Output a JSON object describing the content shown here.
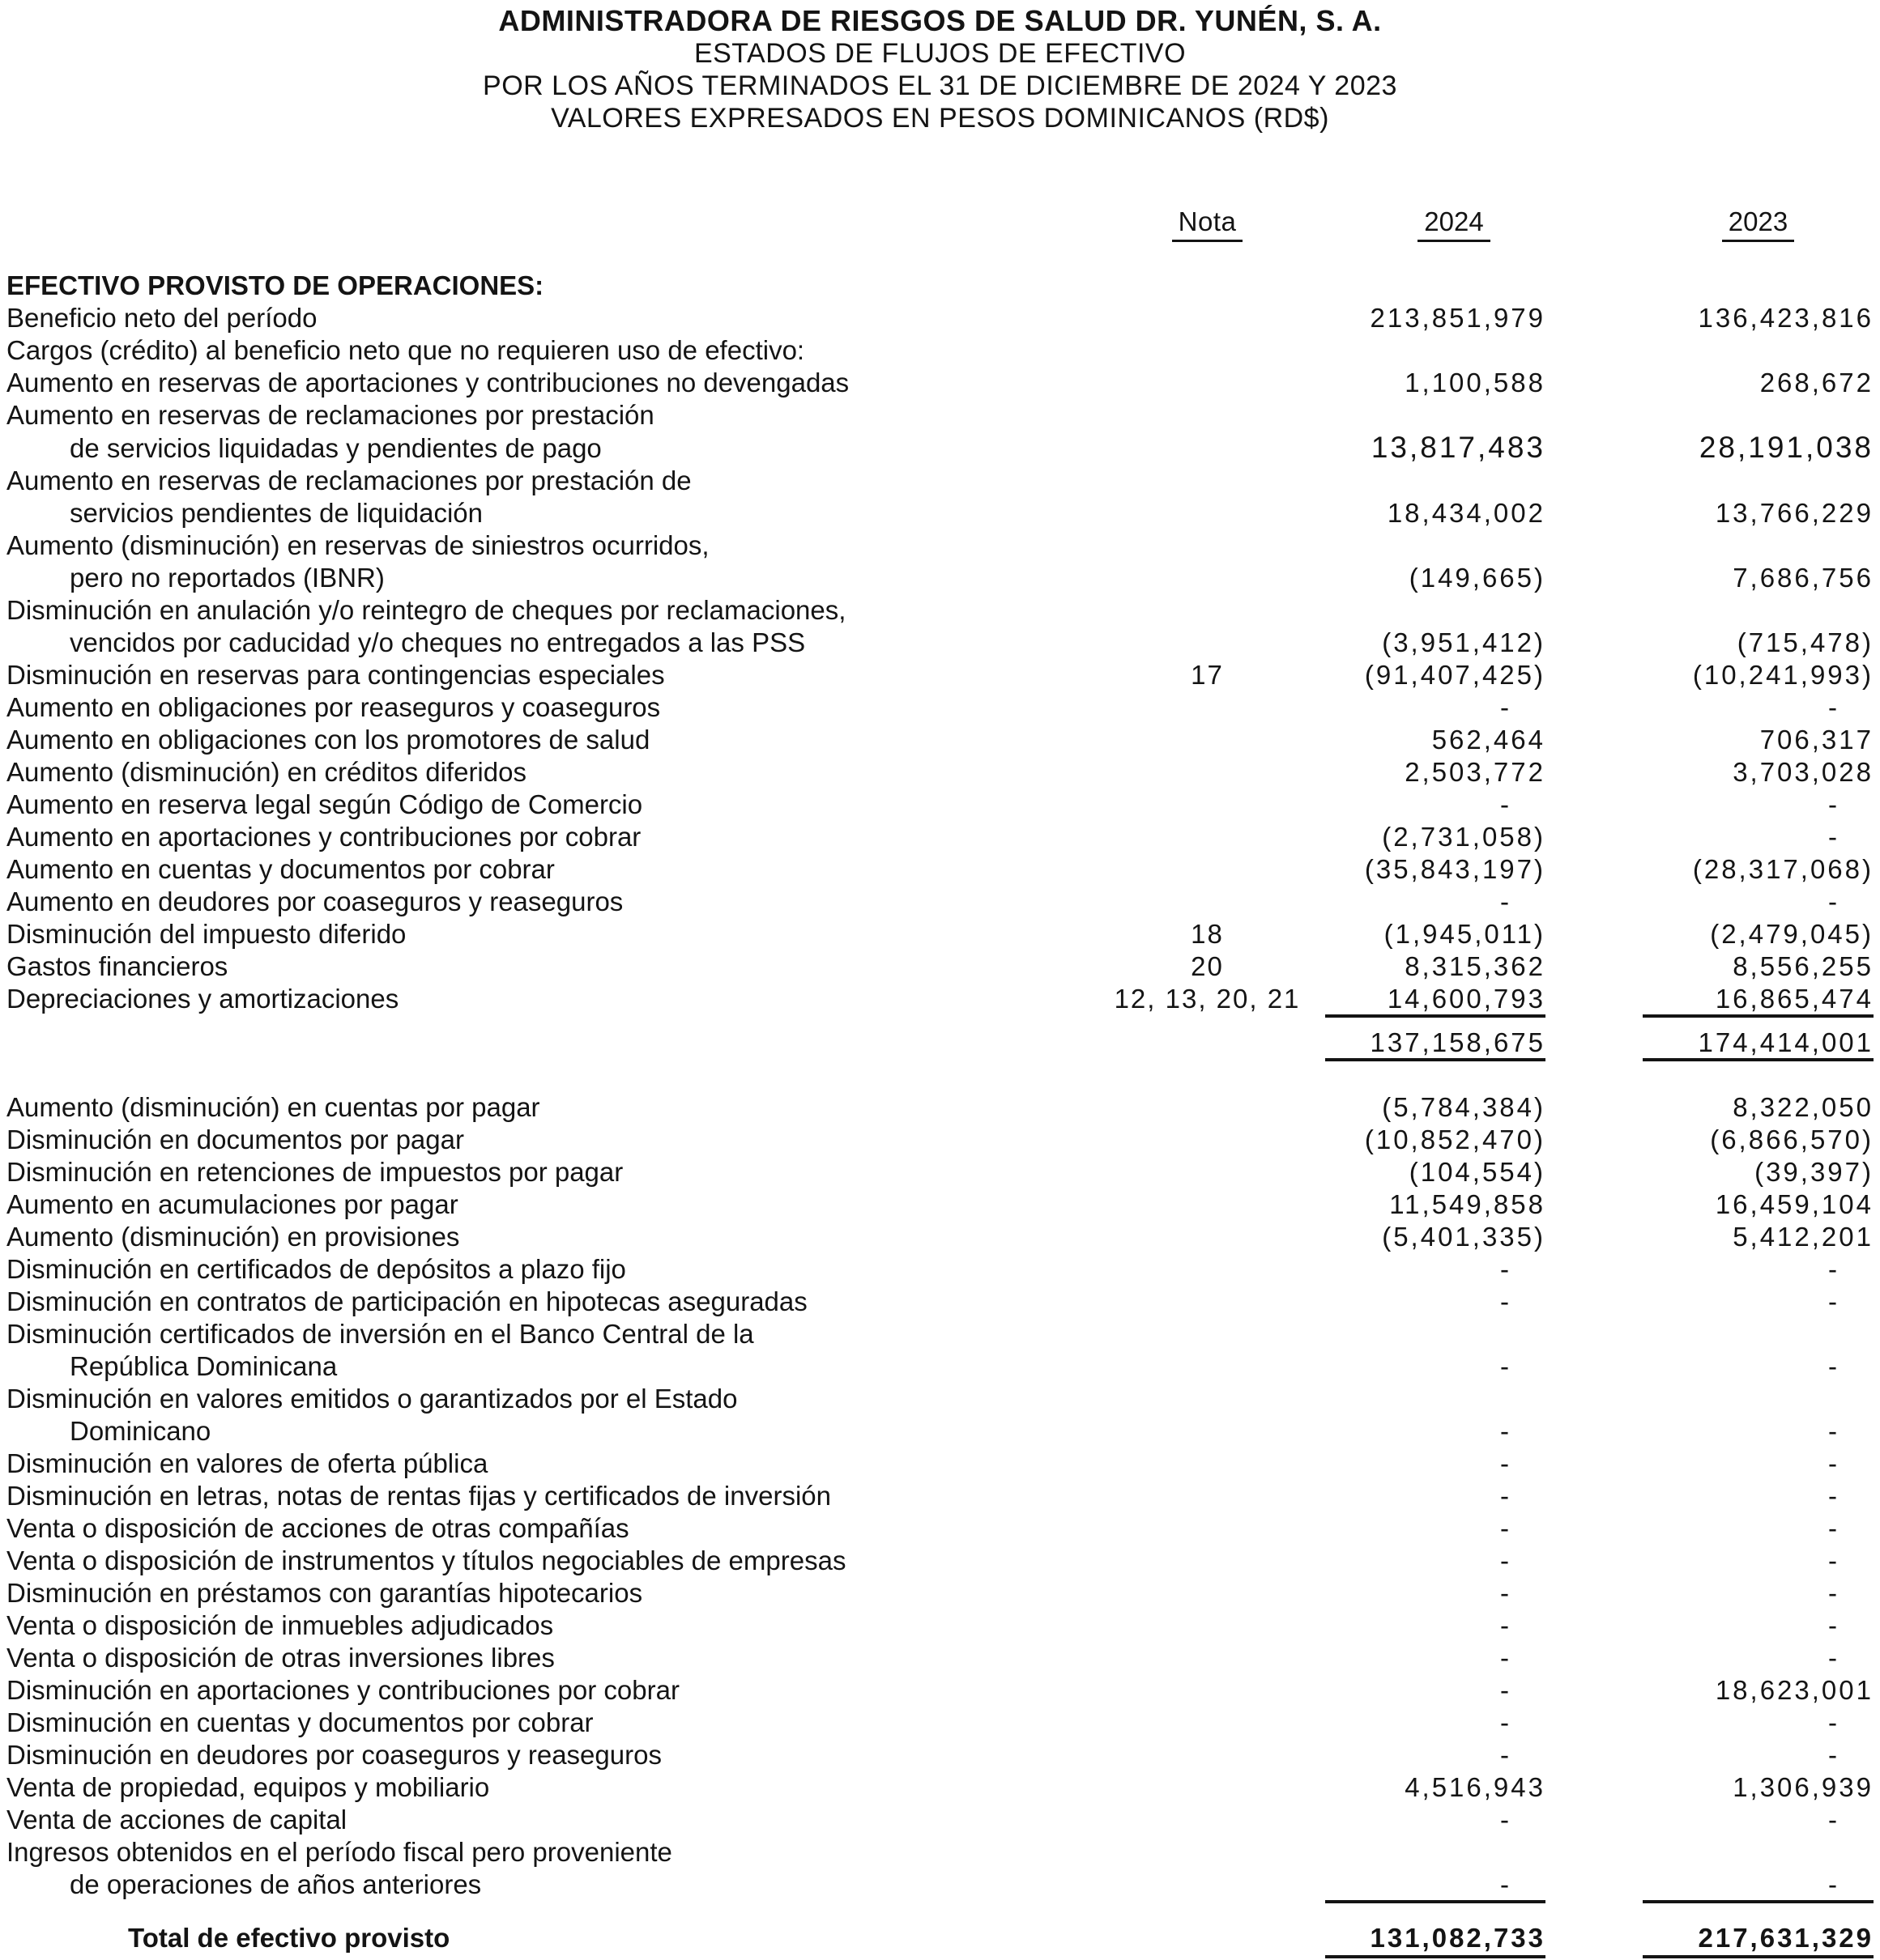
{
  "header": {
    "title": "ADMINISTRADORA DE RIESGOS DE SALUD DR. YUNÉN, S. A.",
    "subtitle1": "ESTADOS DE FLUJOS DE EFECTIVO",
    "subtitle2": "POR LOS AÑOS TERMINADOS EL 31 DE DICIEMBRE DE 2024 Y 2023",
    "subtitle3": "VALORES EXPRESADOS EN PESOS DOMINICANOS (RD$)"
  },
  "columns": {
    "nota": "Nota",
    "y2024": "2024",
    "y2023": "2023"
  },
  "table": {
    "rows": [
      {
        "label": "EFECTIVO PROVISTO DE OPERACIONES:",
        "nota": "",
        "v2024": "",
        "v2023": "",
        "indent": 0,
        "flags": "bold-label section-start",
        "name": "section-title-row"
      },
      {
        "label": "Beneficio neto del período",
        "nota": "",
        "v2024": "213,851,979",
        "v2023": "136,423,816",
        "indent": 0,
        "flags": ""
      },
      {
        "label": "Cargos (crédito) al beneficio neto que no requieren uso de efectivo:",
        "nota": "",
        "v2024": "",
        "v2023": "",
        "indent": 0,
        "flags": ""
      },
      {
        "label": "Aumento en reservas de aportaciones y contribuciones no devengadas",
        "nota": "",
        "v2024": "1,100,588",
        "v2023": "268,672",
        "indent": 0,
        "flags": ""
      },
      {
        "label": "Aumento en reservas de reclamaciones por prestación",
        "nota": "",
        "v2024": "",
        "v2023": "",
        "indent": 0,
        "flags": ""
      },
      {
        "label": "de servicios liquidadas y pendientes de pago",
        "nota": "",
        "v2024": "13,817,483",
        "v2023": "28,191,038",
        "indent": 1,
        "flags": "big-values"
      },
      {
        "label": "Aumento en reservas de reclamaciones por prestación de",
        "nota": "",
        "v2024": "",
        "v2023": "",
        "indent": 0,
        "flags": ""
      },
      {
        "label": "servicios pendientes de liquidación",
        "nota": "",
        "v2024": "18,434,002",
        "v2023": "13,766,229",
        "indent": 1,
        "flags": ""
      },
      {
        "label": "Aumento (disminución) en reservas de siniestros ocurridos,",
        "nota": "",
        "v2024": "",
        "v2023": "",
        "indent": 0,
        "flags": ""
      },
      {
        "label": "pero no reportados (IBNR)",
        "nota": "",
        "v2024": "(149,665)",
        "v2023": "7,686,756",
        "indent": 1,
        "flags": ""
      },
      {
        "label": "Disminución en anulación y/o reintegro de cheques por reclamaciones,",
        "nota": "",
        "v2024": "",
        "v2023": "",
        "indent": 0,
        "flags": ""
      },
      {
        "label": "vencidos por caducidad y/o cheques no entregados a las PSS",
        "nota": "",
        "v2024": "(3,951,412)",
        "v2023": "(715,478)",
        "indent": 1,
        "flags": ""
      },
      {
        "label": "Disminución en reservas para contingencias especiales",
        "nota": "17",
        "v2024": "(91,407,425)",
        "v2023": "(10,241,993)",
        "indent": 0,
        "flags": ""
      },
      {
        "label": "Aumento en obligaciones por reaseguros y coaseguros",
        "nota": "",
        "v2024": "-",
        "v2023": "-",
        "indent": 0,
        "flags": ""
      },
      {
        "label": "Aumento en obligaciones con los promotores de salud",
        "nota": "",
        "v2024": "562,464",
        "v2023": "706,317",
        "indent": 0,
        "flags": ""
      },
      {
        "label": "Aumento (disminución) en créditos diferidos",
        "nota": "",
        "v2024": "2,503,772",
        "v2023": "3,703,028",
        "indent": 0,
        "flags": ""
      },
      {
        "label": "Aumento en reserva legal según Código de Comercio",
        "nota": "",
        "v2024": "-",
        "v2023": "-",
        "indent": 0,
        "flags": ""
      },
      {
        "label": "Aumento en aportaciones y contribuciones por cobrar",
        "nota": "",
        "v2024": "(2,731,058)",
        "v2023": "-",
        "indent": 0,
        "flags": ""
      },
      {
        "label": "Aumento en cuentas y documentos por cobrar",
        "nota": "",
        "v2024": "(35,843,197)",
        "v2023": "(28,317,068)",
        "indent": 0,
        "flags": ""
      },
      {
        "label": "Aumento en deudores por coaseguros y reaseguros",
        "nota": "",
        "v2024": "-",
        "v2023": "-",
        "indent": 0,
        "flags": ""
      },
      {
        "label": "Disminución del impuesto diferido",
        "nota": "18",
        "v2024": "(1,945,011)",
        "v2023": "(2,479,045)",
        "indent": 0,
        "flags": ""
      },
      {
        "label": "Gastos financieros",
        "nota": "20",
        "v2024": "8,315,362",
        "v2023": "8,556,255",
        "indent": 0,
        "flags": ""
      },
      {
        "label": "Depreciaciones y amortizaciones",
        "nota": "12, 13, 20, 21",
        "v2024": "14,600,793",
        "v2023": "16,865,474",
        "indent": 0,
        "flags": "rule-below"
      },
      {
        "label": "",
        "nota": "",
        "v2024": "137,158,675",
        "v2023": "174,414,001",
        "indent": 0,
        "flags": "rule-below gap-sm",
        "name": "subtotal-row"
      },
      {
        "label": "Aumento (disminución) en cuentas por pagar",
        "nota": "",
        "v2024": "(5,784,384)",
        "v2023": "8,322,050",
        "indent": 0,
        "flags": "gap-lg"
      },
      {
        "label": "Disminución en documentos por pagar",
        "nota": "",
        "v2024": "(10,852,470)",
        "v2023": "(6,866,570)",
        "indent": 0,
        "flags": ""
      },
      {
        "label": "Disminución en retenciones de impuestos por pagar",
        "nota": "",
        "v2024": "(104,554)",
        "v2023": "(39,397)",
        "indent": 0,
        "flags": ""
      },
      {
        "label": "Aumento en acumulaciones por pagar",
        "nota": "",
        "v2024": "11,549,858",
        "v2023": "16,459,104",
        "indent": 0,
        "flags": ""
      },
      {
        "label": "Aumento (disminución) en provisiones",
        "nota": "",
        "v2024": "(5,401,335)",
        "v2023": "5,412,201",
        "indent": 0,
        "flags": ""
      },
      {
        "label": "Disminución en certificados de depósitos a plazo fijo",
        "nota": "",
        "v2024": "-",
        "v2023": "-",
        "indent": 0,
        "flags": ""
      },
      {
        "label": "Disminución en contratos de participación en hipotecas aseguradas",
        "nota": "",
        "v2024": "-",
        "v2023": "-",
        "indent": 0,
        "flags": ""
      },
      {
        "label": "Disminución certificados de inversión en el Banco Central de la",
        "nota": "",
        "v2024": "",
        "v2023": "",
        "indent": 0,
        "flags": ""
      },
      {
        "label": "República Dominicana",
        "nota": "",
        "v2024": "-",
        "v2023": "-",
        "indent": 1,
        "flags": ""
      },
      {
        "label": "Disminución en valores emitidos o garantizados por el Estado",
        "nota": "",
        "v2024": "",
        "v2023": "",
        "indent": 0,
        "flags": ""
      },
      {
        "label": "Dominicano",
        "nota": "",
        "v2024": "-",
        "v2023": "-",
        "indent": 1,
        "flags": ""
      },
      {
        "label": "Disminución en valores de oferta pública",
        "nota": "",
        "v2024": "-",
        "v2023": "-",
        "indent": 0,
        "flags": ""
      },
      {
        "label": "Disminución en letras, notas de rentas fijas y certificados de inversión",
        "nota": "",
        "v2024": "-",
        "v2023": "-",
        "indent": 0,
        "flags": ""
      },
      {
        "label": "Venta o disposición de acciones de otras compañías",
        "nota": "",
        "v2024": "-",
        "v2023": "-",
        "indent": 0,
        "flags": ""
      },
      {
        "label": "Venta o disposición de instrumentos y títulos negociables de empresas",
        "nota": "",
        "v2024": "-",
        "v2023": "-",
        "indent": 0,
        "flags": ""
      },
      {
        "label": "Disminución en préstamos con garantías hipotecarios",
        "nota": "",
        "v2024": "-",
        "v2023": "-",
        "indent": 0,
        "flags": ""
      },
      {
        "label": "Venta o disposición de inmuebles adjudicados",
        "nota": "",
        "v2024": "-",
        "v2023": "-",
        "indent": 0,
        "flags": ""
      },
      {
        "label": "Venta o disposición de otras inversiones libres",
        "nota": "",
        "v2024": "-",
        "v2023": "-",
        "indent": 0,
        "flags": ""
      },
      {
        "label": "Disminución en aportaciones y contribuciones por cobrar",
        "nota": "",
        "v2024": "-",
        "v2023": "18,623,001",
        "indent": 0,
        "flags": ""
      },
      {
        "label": "Disminución en cuentas y documentos por cobrar",
        "nota": "",
        "v2024": "-",
        "v2023": "-",
        "indent": 0,
        "flags": ""
      },
      {
        "label": "Disminución en deudores por coaseguros y reaseguros",
        "nota": "",
        "v2024": "-",
        "v2023": "-",
        "indent": 0,
        "flags": ""
      },
      {
        "label": "Venta de propiedad, equipos y mobiliario",
        "nota": "",
        "v2024": "4,516,943",
        "v2023": "1,306,939",
        "indent": 0,
        "flags": ""
      },
      {
        "label": "Venta de acciones de capital",
        "nota": "",
        "v2024": "-",
        "v2023": "-",
        "indent": 0,
        "flags": ""
      },
      {
        "label": "Ingresos obtenidos en el período fiscal pero proveniente",
        "nota": "",
        "v2024": "",
        "v2023": "",
        "indent": 0,
        "flags": ""
      },
      {
        "label": "de operaciones de años anteriores",
        "nota": "",
        "v2024": "-",
        "v2023": "-",
        "indent": 1,
        "flags": "rule-below"
      },
      {
        "label": "Total de efectivo provisto",
        "nota": "",
        "v2024": "131,082,733",
        "v2023": "217,631,329",
        "indent": 2,
        "flags": "bold-label bold-values double-rule gap-xl",
        "name": "total-row"
      }
    ]
  }
}
